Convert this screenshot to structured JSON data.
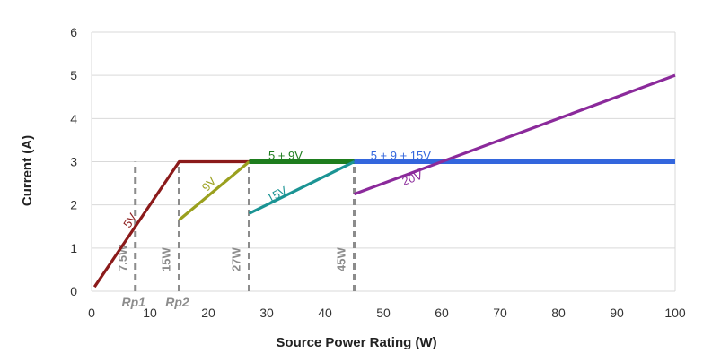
{
  "chart_data": {
    "type": "line",
    "xlabel": "Source Power Rating (W)",
    "ylabel": "Current (A)",
    "xlim": [
      0,
      100
    ],
    "ylim": [
      0,
      6
    ],
    "x_ticks": [
      0,
      10,
      20,
      30,
      40,
      50,
      60,
      70,
      80,
      90,
      100
    ],
    "y_ticks": [
      0,
      1,
      2,
      3,
      4,
      5,
      6
    ],
    "grid": "horizontal",
    "series": [
      {
        "name": "5V",
        "color": "#8b1a1a",
        "x": [
          0.5,
          15,
          27
        ],
        "y": [
          0.1,
          3,
          3
        ]
      },
      {
        "name": "9V",
        "color": "#9aa01e",
        "x": [
          15,
          27
        ],
        "y": [
          1.65,
          3
        ]
      },
      {
        "name": "5 + 9V",
        "color": "#1e7d1e",
        "x": [
          27,
          45
        ],
        "y": [
          3,
          3
        ]
      },
      {
        "name": "15V",
        "color": "#1b9494",
        "x": [
          27,
          45
        ],
        "y": [
          1.8,
          3
        ]
      },
      {
        "name": "5 + 9 + 15V",
        "color": "#3366dd",
        "x": [
          45,
          100
        ],
        "y": [
          3,
          3
        ]
      },
      {
        "name": "20V",
        "color": "#8b2a9b",
        "x": [
          45,
          100
        ],
        "y": [
          2.25,
          5
        ]
      }
    ],
    "markers": [
      {
        "x": 7.5,
        "label": "7.5W",
        "sublabel": "Rp1"
      },
      {
        "x": 15,
        "label": "15W",
        "sublabel": "Rp2"
      },
      {
        "x": 27,
        "label": "27W",
        "sublabel": ""
      },
      {
        "x": 45,
        "label": "45W",
        "sublabel": ""
      }
    ]
  }
}
